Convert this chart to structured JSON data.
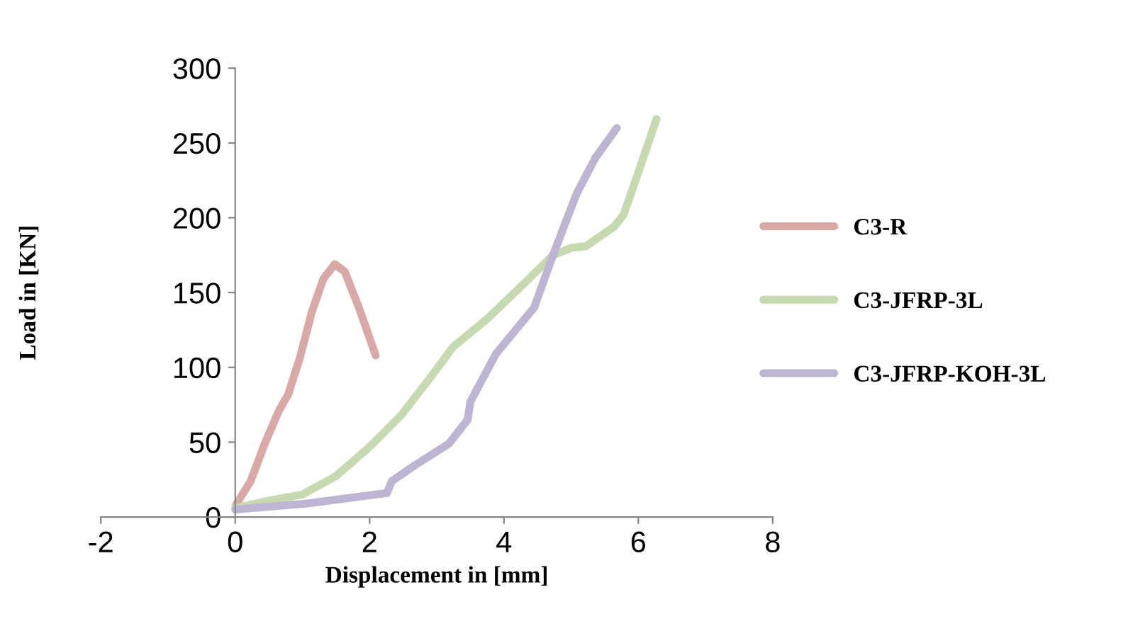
{
  "chart_data": {
    "type": "line",
    "xlabel": "Displacement in [mm]",
    "ylabel": "Load in [KN]",
    "xlim": [
      -2,
      8
    ],
    "xticks": [
      -2,
      0,
      2,
      4,
      6,
      8
    ],
    "ylim": [
      0,
      300
    ],
    "yticks": [
      0,
      50,
      100,
      150,
      200,
      250,
      300
    ],
    "grid": false,
    "legend": "right",
    "marker": "none",
    "line_style": "solid",
    "series": [
      {
        "name": "C3-R",
        "color": "#d9a9a6",
        "x": [
          0.01,
          0.23,
          0.44,
          0.65,
          0.79,
          0.96,
          1.14,
          1.31,
          1.48,
          1.63,
          1.84,
          2.09
        ],
        "values": [
          8,
          24,
          49,
          71,
          82,
          106,
          137,
          159,
          169,
          164,
          140,
          108
        ]
      },
      {
        "name": "C3-JFRP-3L",
        "color": "#c6d9b0",
        "x": [
          0,
          0.51,
          1.0,
          1.49,
          1.98,
          2.47,
          2.9,
          3.25,
          3.74,
          4.23,
          4.73,
          5.01,
          5.22,
          5.64,
          5.78,
          5.99,
          6.27
        ],
        "values": [
          6,
          11,
          15,
          27,
          46,
          68,
          93,
          114,
          132,
          153,
          175,
          180,
          181,
          194,
          202,
          229,
          266
        ]
      },
      {
        "name": "C3-JFRP-KOH-3L",
        "color": "#bdb5d1",
        "x": [
          0,
          1.07,
          2.26,
          2.33,
          2.69,
          3.18,
          3.46,
          3.5,
          3.88,
          4.45,
          4.73,
          5.08,
          5.36,
          5.68
        ],
        "values": [
          5,
          9,
          16,
          24,
          35,
          49,
          65,
          77,
          109,
          140,
          175,
          216,
          240,
          260
        ]
      }
    ]
  }
}
